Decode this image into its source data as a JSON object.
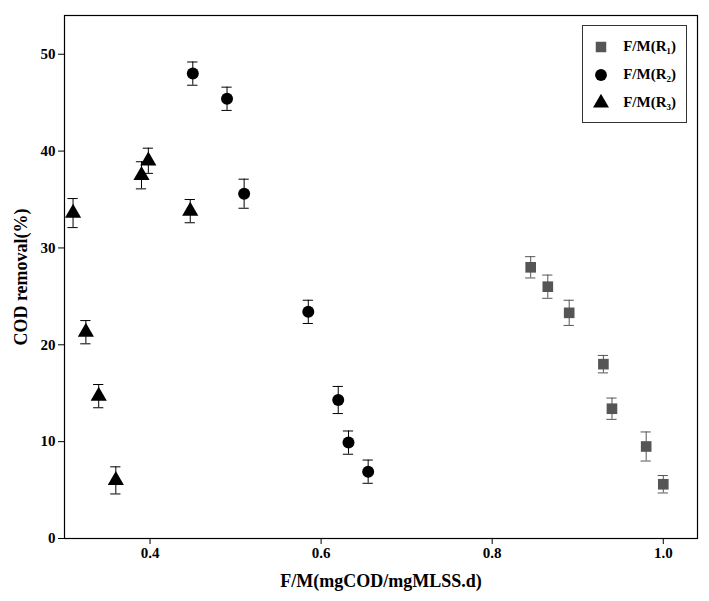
{
  "chart_data": {
    "type": "scatter",
    "xlabel": "F/M(mgCOD/mgMLSS.d)",
    "ylabel": "COD removal(%)",
    "xlim": [
      0.3,
      1.04
    ],
    "xticks": [
      0.4,
      0.6,
      0.8,
      {
        "value": 1,
        "label": "1.0"
      }
    ],
    "ylim": [
      0,
      54
    ],
    "yticks": [
      0,
      10,
      20,
      30,
      40,
      50
    ],
    "grid": false,
    "legend": "top-right",
    "series": [
      {
        "name": "F/M(R₁)",
        "color": "#555555",
        "marker": "square",
        "x": [
          0.845,
          0.865,
          0.89,
          0.93,
          0.94,
          0.98,
          1.0
        ],
        "values": [
          28,
          26,
          23.3,
          18,
          13.4,
          9.5,
          5.6
        ],
        "errors": [
          1.1,
          1.2,
          1.3,
          0.9,
          1.1,
          1.5,
          0.9
        ]
      },
      {
        "name": "F/M(R₂)",
        "color": "#000000",
        "marker": "circle",
        "x": [
          0.45,
          0.49,
          0.51,
          0.585,
          0.62,
          0.632,
          0.655
        ],
        "values": [
          48,
          45.4,
          35.6,
          23.4,
          14.3,
          9.9,
          6.9
        ],
        "errors": [
          1.2,
          1.2,
          1.5,
          1.2,
          1.4,
          1.2,
          1.2
        ]
      },
      {
        "name": "F/M(R₃)",
        "color": "#000000",
        "marker": "triangle",
        "x": [
          0.31,
          0.325,
          0.34,
          0.36,
          0.39,
          0.398,
          0.447
        ],
        "values": [
          33.6,
          21.3,
          14.7,
          6.0,
          37.5,
          39.0,
          33.8
        ],
        "errors": [
          1.5,
          1.2,
          1.2,
          1.4,
          1.4,
          1.3,
          1.2
        ]
      }
    ]
  }
}
